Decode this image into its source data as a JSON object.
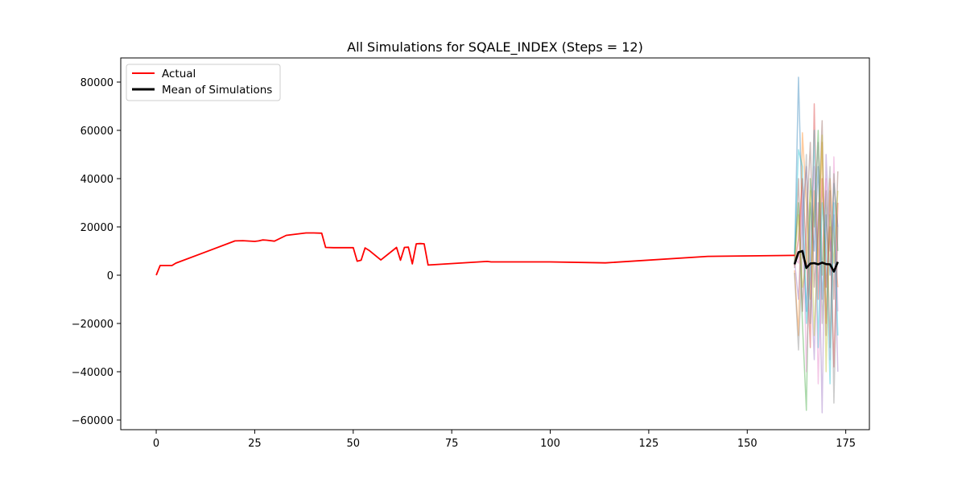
{
  "chart_data": {
    "type": "line",
    "title": "All Simulations for SQALE_INDEX (Steps = 12)",
    "xlabel": "",
    "ylabel": "",
    "xlim": [
      -9,
      181
    ],
    "ylim": [
      -64000,
      90000
    ],
    "xticks": [
      0,
      25,
      50,
      75,
      100,
      125,
      150,
      175
    ],
    "yticks": [
      -60000,
      -40000,
      -20000,
      0,
      20000,
      40000,
      60000,
      80000
    ],
    "xtick_labels": [
      "0",
      "25",
      "50",
      "75",
      "100",
      "125",
      "150",
      "175"
    ],
    "ytick_labels": [
      "−60000",
      "−40000",
      "−20000",
      "0",
      "20000",
      "40000",
      "60000",
      "80000"
    ],
    "grid": false,
    "legend": {
      "placement": "top-left",
      "entries": [
        {
          "label": "Actual",
          "color": "#ff0000"
        },
        {
          "label": "Mean of Simulations",
          "color": "#000000"
        }
      ]
    },
    "series": [
      {
        "name": "Actual",
        "color": "#ff0000",
        "x": [
          0,
          1,
          2,
          3,
          4,
          5,
          20,
          22,
          25,
          26,
          27,
          28,
          30,
          33,
          38,
          40,
          42,
          43,
          45,
          50,
          51,
          52,
          53,
          54,
          57,
          61,
          62,
          63,
          64,
          65,
          66,
          67,
          68,
          69,
          84,
          85,
          100,
          114,
          140,
          162
        ],
        "y": [
          0,
          4000,
          4000,
          4000,
          4000,
          5000,
          14200,
          14300,
          14000,
          14200,
          14600,
          14500,
          14100,
          16500,
          17500,
          17500,
          17400,
          11500,
          11400,
          11400,
          5800,
          6200,
          11300,
          10300,
          6300,
          11500,
          6200,
          11500,
          11600,
          4700,
          13000,
          13100,
          13000,
          4200,
          5700,
          5500,
          5500,
          5100,
          7800,
          8200
        ]
      },
      {
        "name": "Mean of Simulations",
        "color": "#000000",
        "x": [
          162,
          163,
          164,
          165,
          166,
          167,
          168,
          169,
          170,
          171,
          172,
          173
        ],
        "y": [
          4500,
          9500,
          10000,
          3000,
          4800,
          5000,
          4500,
          5200,
          4600,
          4500,
          1500,
          5500
        ]
      }
    ],
    "simulations": {
      "x": [
        162,
        163,
        164,
        165,
        166,
        167,
        168,
        169,
        170,
        171,
        172,
        173
      ],
      "colors": [
        "#1f77b4",
        "#ff7f0e",
        "#2ca02c",
        "#d62728",
        "#9467bd",
        "#8c564b",
        "#e377c2",
        "#7f7f7f",
        "#bcbd22",
        "#17becf"
      ],
      "y": [
        [
          5000,
          82000,
          20000,
          -15000,
          30000,
          10000,
          45000,
          -10000,
          25000,
          0,
          38000,
          20000
        ],
        [
          2000,
          -25000,
          59000,
          30000,
          -10000,
          35000,
          5000,
          55000,
          -20000,
          40000,
          15000,
          -5000
        ],
        [
          8000,
          30000,
          -20000,
          -56000,
          40000,
          20000,
          60000,
          0,
          35000,
          -30000,
          42000,
          10000
        ],
        [
          4000,
          15000,
          40000,
          10000,
          -30000,
          71000,
          -10000,
          40000,
          -5000,
          20000,
          -38000,
          30000
        ],
        [
          6000,
          -10000,
          25000,
          45000,
          5000,
          -35000,
          30000,
          -57000,
          50000,
          10000,
          25000,
          -40000
        ],
        [
          3000,
          40000,
          -15000,
          20000,
          55000,
          -5000,
          20000,
          64000,
          -25000,
          35000,
          -10000,
          43000
        ],
        [
          7000,
          5000,
          35000,
          -40000,
          15000,
          45000,
          -45000,
          10000,
          40000,
          -35000,
          49000,
          -15000
        ],
        [
          1000,
          -31000,
          10000,
          50000,
          -20000,
          25000,
          55000,
          -20000,
          15000,
          45000,
          -53000,
          20000
        ],
        [
          5000,
          25000,
          -5000,
          5000,
          35000,
          -25000,
          15000,
          58000,
          -40000,
          25000,
          5000,
          35000
        ],
        [
          9000,
          52000,
          45000,
          -20000,
          0,
          60000,
          -30000,
          30000,
          10000,
          -45000,
          30000,
          -25000
        ]
      ]
    }
  }
}
